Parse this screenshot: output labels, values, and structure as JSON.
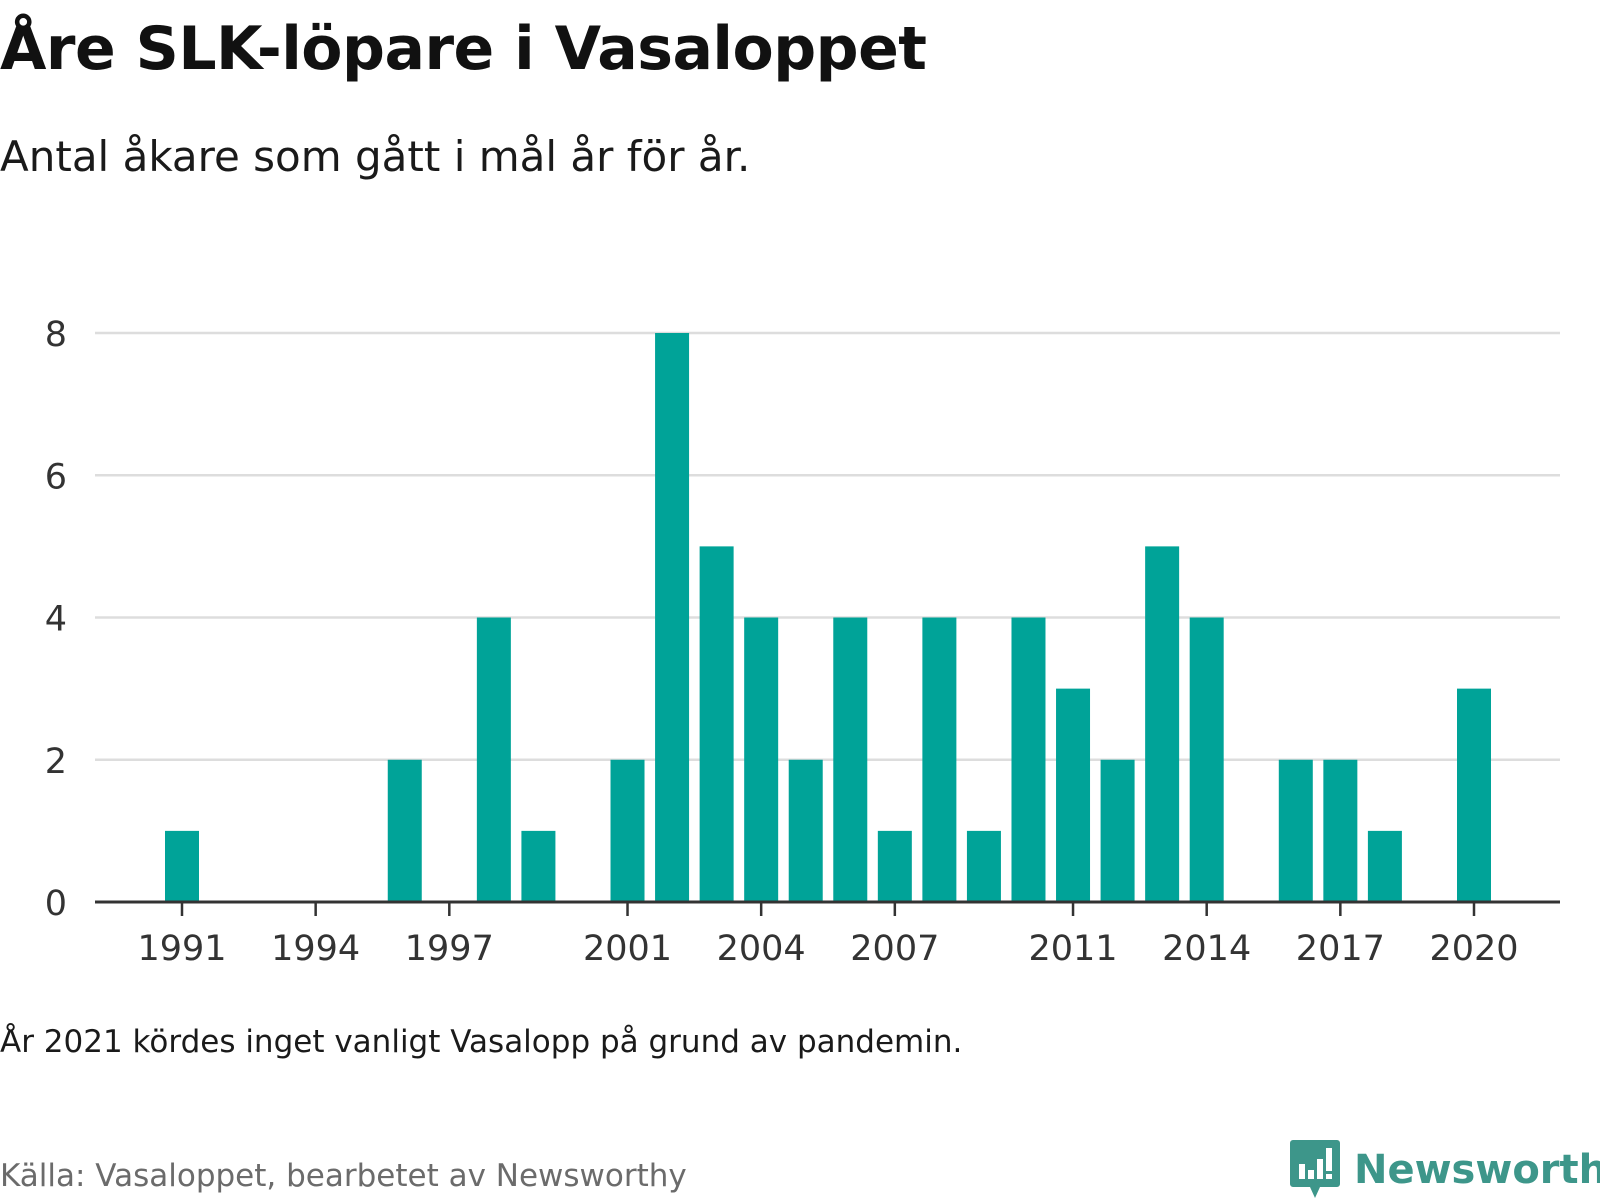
{
  "title": "Åre SLK-löpare i Vasaloppet",
  "subtitle": "Antal åkare som gått i mål år för år.",
  "note": "År 2021 kördes inget vanligt Vasalopp på grund av pandemin.",
  "source": "Källa: Vasaloppet, bearbetet av Newsworthy",
  "brand": {
    "name": "Newsworthy",
    "icon": "newsworthy-logo-icon",
    "color": "#3d968a"
  },
  "colors": {
    "bar": "#00a398",
    "grid": "#dddddd",
    "axis": "#333333",
    "tick_text": "#333333"
  },
  "chart_data": {
    "type": "bar",
    "title": "Åre SLK-löpare i Vasaloppet",
    "subtitle": "Antal åkare som gått i mål år för år.",
    "xlabel": "",
    "ylabel": "",
    "ylim": [
      0,
      8
    ],
    "yticks": [
      0,
      2,
      4,
      6,
      8
    ],
    "xticks": [
      1991,
      1994,
      1997,
      2001,
      2004,
      2007,
      2011,
      2014,
      2017,
      2020
    ],
    "grid": true,
    "legend": "none",
    "x": [
      1991,
      1992,
      1993,
      1994,
      1995,
      1996,
      1997,
      1998,
      1999,
      2000,
      2001,
      2002,
      2003,
      2004,
      2005,
      2006,
      2007,
      2008,
      2009,
      2010,
      2011,
      2012,
      2013,
      2014,
      2015,
      2016,
      2017,
      2018,
      2019,
      2020
    ],
    "values": [
      1,
      0,
      0,
      0,
      0,
      2,
      0,
      4,
      1,
      0,
      2,
      8,
      5,
      4,
      2,
      4,
      1,
      4,
      1,
      4,
      3,
      2,
      5,
      4,
      0,
      2,
      2,
      1,
      0,
      3
    ]
  }
}
